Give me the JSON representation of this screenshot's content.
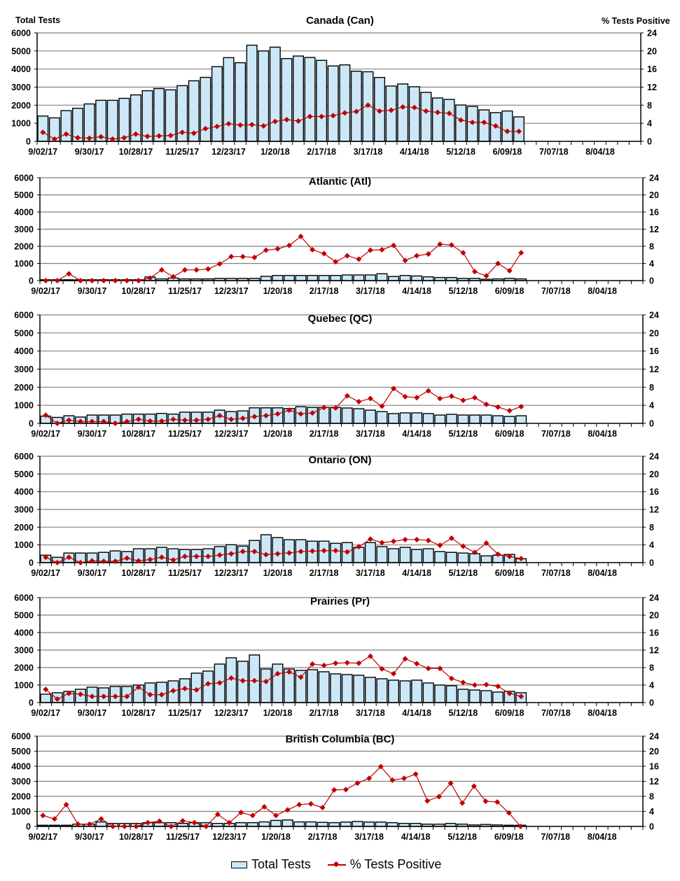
{
  "header": {
    "left_axis_title": "Total Tests",
    "right_axis_title": "% Tests Positive"
  },
  "legend": {
    "bars": "Total Tests",
    "line": "% Tests Positive"
  },
  "colors": {
    "bar_fill": "#cce8f8",
    "bar_stroke": "#000000",
    "line": "#c00000",
    "grid": "#808080"
  },
  "chart_data": [
    {
      "type": "bar+line",
      "title": "Canada (Can)",
      "x_start": "9/02/17",
      "x_end": "8/25/18",
      "x_interval": "weekly",
      "x_tick_labels": [
        "9/02/17",
        "9/30/17",
        "10/28/17",
        "11/25/17",
        "12/23/17",
        "1/20/18",
        "2/17/18",
        "3/17/18",
        "4/14/18",
        "5/12/18",
        "6/09/18",
        "7/07/18",
        "8/04/18"
      ],
      "y_left": {
        "label": "Total Tests",
        "range": [
          0,
          6000
        ],
        "ticks": [
          0,
          1000,
          2000,
          3000,
          4000,
          5000,
          6000
        ]
      },
      "y_right": {
        "label": "% Tests Positive",
        "range": [
          0,
          24
        ],
        "ticks": [
          0,
          4,
          8,
          12,
          16,
          20,
          24
        ]
      },
      "grid": true,
      "series": [
        {
          "name": "Total Tests",
          "type": "bar",
          "values": [
            1400,
            1300,
            1700,
            1830,
            2070,
            2270,
            2270,
            2380,
            2570,
            2800,
            2920,
            2850,
            3080,
            3350,
            3540,
            4130,
            4630,
            4350,
            5320,
            5000,
            5210,
            4580,
            4720,
            4640,
            4480,
            4170,
            4230,
            3880,
            3850,
            3535,
            3060,
            3175,
            3020,
            2710,
            2400,
            2320,
            2010,
            1935,
            1740,
            1590,
            1680,
            1355
          ]
        },
        {
          "name": "% Tests Positive",
          "type": "line",
          "axis": "right",
          "values": [
            2.0,
            0.5,
            1.6,
            0.8,
            0.7,
            1.0,
            0.5,
            0.8,
            1.6,
            1.1,
            1.2,
            1.3,
            2.0,
            1.8,
            2.8,
            3.3,
            3.9,
            3.6,
            3.7,
            3.4,
            4.4,
            4.8,
            4.5,
            5.5,
            5.5,
            5.7,
            6.3,
            6.6,
            8.0,
            6.7,
            6.9,
            7.6,
            7.5,
            6.7,
            6.4,
            6.2,
            4.7,
            4.2,
            4.2,
            3.4,
            2.2,
            2.2
          ]
        }
      ]
    },
    {
      "type": "bar+line",
      "title": "Atlantic (Atl)",
      "x_start": "9/02/17",
      "x_end": "8/25/18",
      "x_interval": "weekly",
      "x_tick_labels": [
        "9/02/17",
        "9/30/17",
        "10/28/17",
        "11/25/17",
        "12/23/17",
        "1/20/18",
        "2/17/18",
        "3/17/18",
        "4/14/18",
        "5/12/18",
        "6/09/18",
        "7/07/18",
        "8/04/18"
      ],
      "y_left": {
        "range": [
          0,
          6000
        ],
        "ticks": [
          0,
          1000,
          2000,
          3000,
          4000,
          5000,
          6000
        ]
      },
      "y_right": {
        "range": [
          0,
          24
        ],
        "ticks": [
          0,
          4,
          8,
          12,
          16,
          20,
          24
        ]
      },
      "grid": true,
      "series": [
        {
          "name": "Total Tests",
          "type": "bar",
          "values": [
            50,
            50,
            50,
            50,
            50,
            50,
            50,
            50,
            50,
            210,
            100,
            150,
            100,
            100,
            100,
            130,
            130,
            130,
            130,
            250,
            300,
            300,
            300,
            300,
            300,
            300,
            330,
            330,
            330,
            400,
            240,
            300,
            270,
            220,
            180,
            180,
            130,
            130,
            80,
            100,
            130,
            100
          ]
        },
        {
          "name": "% Tests Positive",
          "type": "line",
          "axis": "right",
          "values": [
            0,
            0,
            1.6,
            0,
            0,
            0,
            0,
            0,
            0,
            0.6,
            2.5,
            0.9,
            2.5,
            2.5,
            2.7,
            3.9,
            5.6,
            5.6,
            5.4,
            7.1,
            7.4,
            8.2,
            10.3,
            7.2,
            6.3,
            4.4,
            5.8,
            5.0,
            7.1,
            7.2,
            8.2,
            4.7,
            5.8,
            6.2,
            8.5,
            8.3,
            6.5,
            2.1,
            1.1,
            4.0,
            2.3,
            6.5
          ]
        }
      ]
    },
    {
      "type": "bar+line",
      "title": "Quebec (QC)",
      "x_start": "9/02/17",
      "x_end": "8/25/18",
      "x_interval": "weekly",
      "x_tick_labels": [
        "9/02/17",
        "9/30/17",
        "10/28/17",
        "11/25/17",
        "12/23/17",
        "1/20/18",
        "2/17/18",
        "3/17/18",
        "4/14/18",
        "5/12/18",
        "6/09/18",
        "7/07/18",
        "8/04/18"
      ],
      "y_left": {
        "range": [
          0,
          6000
        ],
        "ticks": [
          0,
          1000,
          2000,
          3000,
          4000,
          5000,
          6000
        ]
      },
      "y_right": {
        "range": [
          0,
          24
        ],
        "ticks": [
          0,
          4,
          8,
          12,
          16,
          20,
          24
        ]
      },
      "grid": true,
      "series": [
        {
          "name": "Total Tests",
          "type": "bar",
          "values": [
            400,
            330,
            420,
            350,
            460,
            460,
            460,
            510,
            510,
            510,
            550,
            510,
            620,
            620,
            620,
            730,
            650,
            690,
            860,
            860,
            860,
            820,
            920,
            885,
            885,
            885,
            850,
            810,
            730,
            650,
            540,
            580,
            580,
            540,
            460,
            500,
            460,
            460,
            460,
            420,
            385,
            420
          ]
        },
        {
          "name": "% Tests Positive",
          "type": "line",
          "axis": "right",
          "values": [
            1.8,
            0,
            0.7,
            0.4,
            0.4,
            0.4,
            0,
            0.4,
            0.9,
            0.5,
            0.5,
            0.9,
            0.7,
            0.7,
            0.9,
            1.7,
            0.9,
            1.1,
            1.5,
            1.7,
            2.1,
            2.9,
            2.1,
            2.3,
            3.5,
            3.4,
            6.1,
            4.8,
            5.5,
            3.8,
            7.7,
            5.9,
            5.7,
            7.2,
            5.5,
            6.0,
            5.1,
            5.7,
            4.2,
            3.6,
            2.8,
            3.7
          ]
        }
      ]
    },
    {
      "type": "bar+line",
      "title": "Ontario (ON)",
      "x_start": "9/02/17",
      "x_end": "8/25/18",
      "x_interval": "weekly",
      "x_tick_labels": [
        "9/02/17",
        "9/30/17",
        "10/28/17",
        "11/25/17",
        "12/23/17",
        "1/20/18",
        "2/17/18",
        "3/17/18",
        "4/14/18",
        "5/12/18",
        "6/09/18",
        "7/07/18",
        "8/04/18"
      ],
      "y_left": {
        "range": [
          0,
          6000
        ],
        "ticks": [
          0,
          1000,
          2000,
          3000,
          4000,
          5000,
          6000
        ]
      },
      "y_right": {
        "range": [
          0,
          24
        ],
        "ticks": [
          0,
          4,
          8,
          12,
          16,
          20,
          24
        ]
      },
      "grid": true,
      "series": [
        {
          "name": "Total Tests",
          "type": "bar",
          "values": [
            420,
            300,
            540,
            540,
            540,
            580,
            660,
            620,
            780,
            780,
            860,
            780,
            740,
            740,
            780,
            900,
            1010,
            930,
            1250,
            1570,
            1410,
            1290,
            1290,
            1210,
            1210,
            1090,
            1130,
            860,
            1130,
            900,
            780,
            860,
            740,
            780,
            620,
            580,
            540,
            500,
            380,
            420,
            460,
            220
          ]
        },
        {
          "name": "% Tests Positive",
          "type": "line",
          "axis": "right",
          "values": [
            1.2,
            0,
            1.2,
            0,
            0.4,
            0.3,
            0.3,
            1.0,
            0.4,
            0.7,
            1.2,
            0.6,
            1.4,
            1.4,
            1.4,
            1.7,
            2.0,
            2.5,
            2.5,
            1.8,
            2.0,
            2.2,
            2.5,
            2.6,
            2.7,
            2.7,
            2.4,
            3.6,
            5.3,
            4.5,
            4.8,
            5.2,
            5.2,
            5.0,
            3.9,
            5.5,
            3.7,
            2.3,
            4.4,
            1.9,
            1.4,
            0.9
          ]
        }
      ]
    },
    {
      "type": "bar+line",
      "title": "Prairies (Pr)",
      "x_start": "9/02/17",
      "x_end": "8/25/18",
      "x_interval": "weekly",
      "x_tick_labels": [
        "9/02/17",
        "9/30/17",
        "10/28/17",
        "11/25/17",
        "12/23/17",
        "1/20/18",
        "2/17/18",
        "3/17/18",
        "4/14/18",
        "5/12/18",
        "6/09/18",
        "7/07/18",
        "8/04/18"
      ],
      "y_left": {
        "range": [
          0,
          6000
        ],
        "ticks": [
          0,
          1000,
          2000,
          3000,
          4000,
          5000,
          6000
        ]
      },
      "y_right": {
        "range": [
          0,
          24
        ],
        "ticks": [
          0,
          4,
          8,
          12,
          16,
          20,
          24
        ]
      },
      "grid": true,
      "series": [
        {
          "name": "Total Tests",
          "type": "bar",
          "values": [
            480,
            560,
            640,
            760,
            880,
            840,
            920,
            920,
            1000,
            1120,
            1160,
            1240,
            1360,
            1680,
            1800,
            2200,
            2560,
            2360,
            2720,
            1920,
            2200,
            1920,
            1840,
            1880,
            1760,
            1640,
            1600,
            1560,
            1440,
            1360,
            1280,
            1240,
            1280,
            1120,
            1000,
            960,
            760,
            720,
            680,
            600,
            640,
            560
          ]
        },
        {
          "name": "% Tests Positive",
          "type": "line",
          "axis": "right",
          "values": [
            3.0,
            0.8,
            2.1,
            1.9,
            1.4,
            1.4,
            1.4,
            1.4,
            3.5,
            1.8,
            1.8,
            2.7,
            3.2,
            2.9,
            4.3,
            4.5,
            5.6,
            5.0,
            5.0,
            4.8,
            6.6,
            7.0,
            5.8,
            8.8,
            8.5,
            9.0,
            9.1,
            9.0,
            10.6,
            7.7,
            6.6,
            10.0,
            8.9,
            7.8,
            7.8,
            5.5,
            4.6,
            4.0,
            4.1,
            3.7,
            2.1,
            1.4
          ]
        }
      ]
    },
    {
      "type": "bar+line",
      "title": "British Columbia (BC)",
      "x_start": "9/02/17",
      "x_end": "8/25/18",
      "x_interval": "weekly",
      "x_tick_labels": [
        "9/02/17",
        "9/30/17",
        "10/28/17",
        "11/25/17",
        "12/23/17",
        "1/20/18",
        "2/17/18",
        "3/17/18",
        "4/14/18",
        "5/12/18",
        "6/09/18",
        "7/07/18",
        "8/04/18"
      ],
      "y_left": {
        "range": [
          0,
          6000
        ],
        "ticks": [
          0,
          1000,
          2000,
          3000,
          4000,
          5000,
          6000
        ]
      },
      "y_right": {
        "range": [
          0,
          24
        ],
        "ticks": [
          0,
          4,
          8,
          12,
          16,
          20,
          24
        ]
      },
      "grid": true,
      "series": [
        {
          "name": "Total Tests",
          "type": "bar",
          "values": [
            80,
            80,
            80,
            150,
            150,
            300,
            200,
            200,
            200,
            250,
            250,
            250,
            200,
            250,
            250,
            200,
            200,
            250,
            250,
            300,
            400,
            430,
            300,
            300,
            270,
            250,
            290,
            330,
            290,
            290,
            250,
            200,
            200,
            150,
            150,
            200,
            150,
            100,
            130,
            100,
            80,
            80
          ]
        },
        {
          "name": "% Tests Positive",
          "type": "line",
          "axis": "right",
          "values": [
            2.9,
            2.0,
            5.8,
            0.6,
            0.6,
            2.0,
            0,
            0,
            0,
            1.0,
            1.4,
            0,
            1.5,
            1.0,
            0,
            3.2,
            1.0,
            3.7,
            2.9,
            5.2,
            2.9,
            4.4,
            5.8,
            6.0,
            5.0,
            9.7,
            9.8,
            11.5,
            12.8,
            15.9,
            12.3,
            12.8,
            13.9,
            6.8,
            7.9,
            11.5,
            6.2,
            10.7,
            6.7,
            6.5,
            3.6,
            0
          ]
        }
      ]
    }
  ]
}
